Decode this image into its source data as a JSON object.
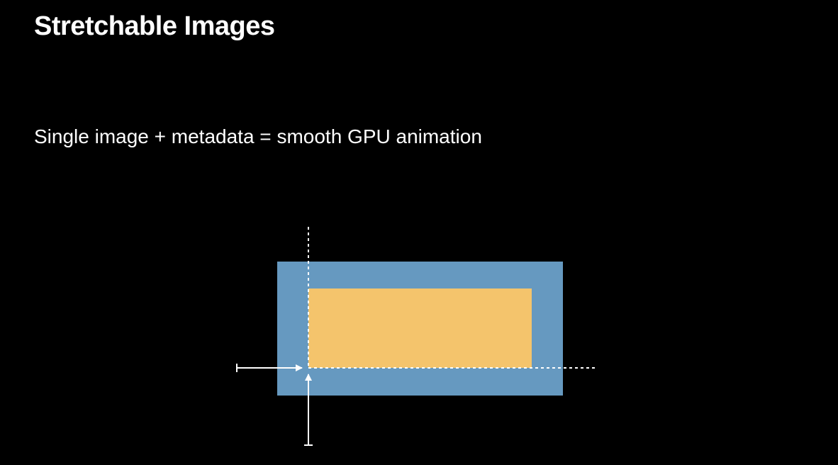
{
  "slide": {
    "title": "Stretchable Images",
    "subtitle": "Single image + metadata = smooth GPU animation"
  },
  "diagram": {
    "colors": {
      "outer_image": "#6699c0",
      "stretch_region": "#f4c46c",
      "guides": "#ffffff"
    }
  }
}
